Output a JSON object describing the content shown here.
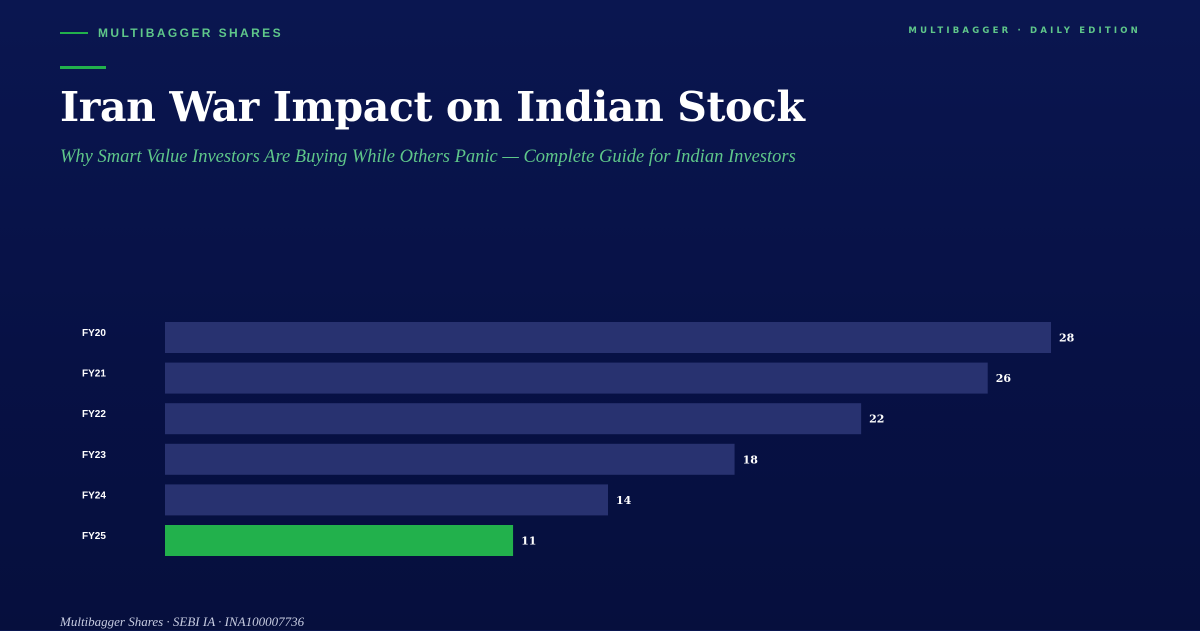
{
  "header": {
    "brand": "MULTIBAGGER SHARES",
    "edition": "MULTIBAGGER · DAILY EDITION"
  },
  "title": "Iran War Impact on Indian Stock",
  "subtitle": "Why Smart Value Investors Are Buying While Others Panic — Complete Guide for Indian Investors",
  "footer": "Multibagger Shares · SEBI IA · INA100007736",
  "colors": {
    "background": "#071145",
    "bar": "#283270",
    "highlight_bar": "#22b14c",
    "accent": "#5fc78a"
  },
  "chart_data": {
    "type": "bar",
    "orientation": "horizontal",
    "categories": [
      "FY20",
      "FY21",
      "FY22",
      "FY23",
      "FY24",
      "FY25"
    ],
    "values": [
      28,
      26,
      22,
      18,
      14,
      11
    ],
    "highlight": "FY25",
    "title": "",
    "xlabel": "",
    "ylabel": "",
    "xlim": [
      0,
      28
    ],
    "grid": false,
    "legend": "none"
  }
}
